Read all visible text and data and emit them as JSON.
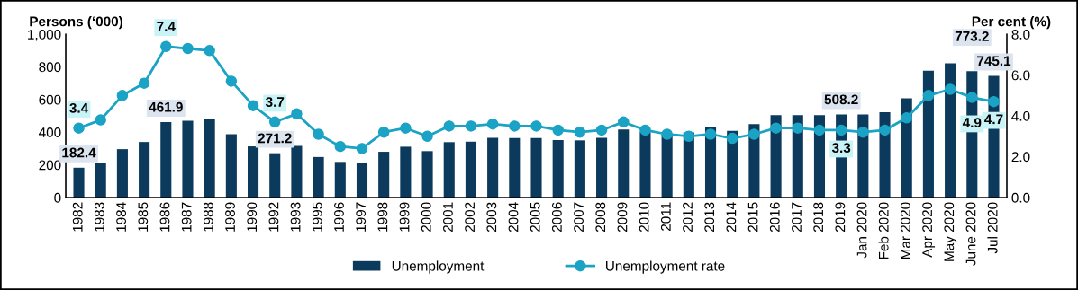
{
  "chart_data": {
    "type": "bar",
    "categories": [
      "1982",
      "1983",
      "1984",
      "1985",
      "1986",
      "1987",
      "1988",
      "1989",
      "1990",
      "1992",
      "1993",
      "1995",
      "1996",
      "1997",
      "1998",
      "1999",
      "2000",
      "2001",
      "2002",
      "2003",
      "2004",
      "2005",
      "2006",
      "2007",
      "2008",
      "2009",
      "2010",
      "2011",
      "2012",
      "2013",
      "2014",
      "2015",
      "2016",
      "2017",
      "2018",
      "2019",
      "Jan 2020",
      "Feb 2020",
      "Mar 2020",
      "Apr 2020",
      "May 2020",
      "June 2020",
      "Jul 2020"
    ],
    "series": [
      {
        "name": "Unemployment",
        "color": "#0b3a5d",
        "values": [
          182.4,
          214,
          296,
          340,
          461.9,
          470,
          478,
          388,
          313,
          271.2,
          316,
          248,
          218,
          214,
          280,
          311,
          284,
          339,
          342,
          366,
          364,
          364,
          352,
          350,
          366,
          416,
          403,
          385,
          399,
          430,
          408,
          449,
          504,
          504,
          504,
          508.2,
          509,
          522,
          608,
          776,
          822,
          773.2,
          745.1
        ],
        "value_labels": [
          "182.4",
          null,
          null,
          null,
          "461.9",
          null,
          null,
          null,
          null,
          "271.2",
          null,
          null,
          null,
          null,
          null,
          null,
          null,
          null,
          null,
          null,
          null,
          null,
          null,
          null,
          null,
          null,
          null,
          null,
          null,
          null,
          null,
          null,
          null,
          null,
          null,
          "508.2",
          null,
          null,
          null,
          null,
          null,
          "773.2",
          "745.1"
        ]
      },
      {
        "name": "Unemployment rate",
        "type": "line",
        "axis": "y2",
        "color": "#1aa3c4",
        "marker": "circle",
        "line_style": "solid",
        "values": [
          3.4,
          3.8,
          5.0,
          5.6,
          7.4,
          7.3,
          7.2,
          5.7,
          4.5,
          3.7,
          4.1,
          3.1,
          2.5,
          2.4,
          3.2,
          3.4,
          3.0,
          3.5,
          3.5,
          3.6,
          3.5,
          3.5,
          3.3,
          3.2,
          3.3,
          3.7,
          3.3,
          3.1,
          3.0,
          3.1,
          2.9,
          3.1,
          3.4,
          3.4,
          3.3,
          3.3,
          3.2,
          3.3,
          3.9,
          5.0,
          5.3,
          4.9,
          4.7
        ],
        "value_labels": [
          "3.4",
          null,
          null,
          null,
          "7.4",
          null,
          null,
          null,
          null,
          "3.7",
          null,
          null,
          null,
          null,
          null,
          null,
          null,
          null,
          null,
          null,
          null,
          null,
          null,
          null,
          null,
          null,
          null,
          null,
          null,
          null,
          null,
          null,
          null,
          null,
          null,
          "3.3",
          null,
          null,
          null,
          null,
          null,
          "4.9",
          "4.7"
        ]
      }
    ],
    "ylabel": "Persons (‘000)",
    "y2label": "Per cent (%)",
    "ylim": [
      0,
      1000
    ],
    "yticks": [
      0,
      200,
      400,
      600,
      800,
      {
        "value": 1000,
        "label": "1,000"
      }
    ],
    "y2lim": [
      0,
      8
    ],
    "y2ticks": [
      {
        "value": 0,
        "label": "0.0"
      },
      {
        "value": 2,
        "label": "2.0"
      },
      {
        "value": 4,
        "label": "4.0"
      },
      {
        "value": 6,
        "label": "6.0"
      },
      {
        "value": 8,
        "label": "8.0"
      }
    ],
    "legend": "bottom",
    "grid": false
  }
}
